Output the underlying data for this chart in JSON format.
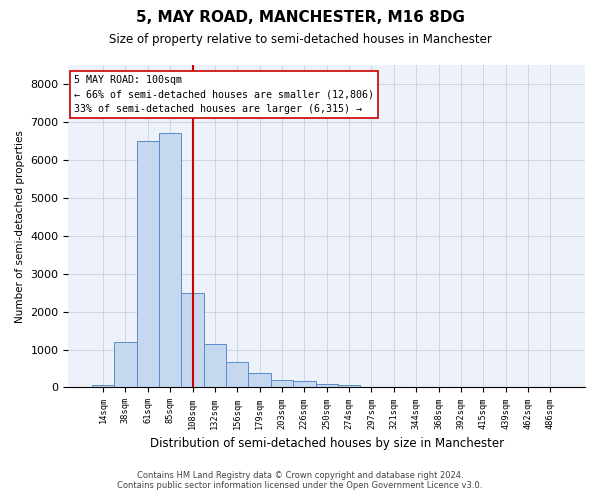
{
  "title": "5, MAY ROAD, MANCHESTER, M16 8DG",
  "subtitle": "Size of property relative to semi-detached houses in Manchester",
  "xlabel": "Distribution of semi-detached houses by size in Manchester",
  "ylabel": "Number of semi-detached properties",
  "footer_line1": "Contains HM Land Registry data © Crown copyright and database right 2024.",
  "footer_line2": "Contains public sector information licensed under the Open Government Licence v3.0.",
  "annotation_line1": "5 MAY ROAD: 100sqm",
  "annotation_line2": "← 66% of semi-detached houses are smaller (12,806)",
  "annotation_line3": "33% of semi-detached houses are larger (6,315) →",
  "bar_color": "#c5d8f0",
  "bar_edge_color": "#5b8cc8",
  "vline_color": "#cc0000",
  "grid_color": "#c8d0de",
  "bg_color": "#edf2fa",
  "categories": [
    "14sqm",
    "38sqm",
    "61sqm",
    "85sqm",
    "108sqm",
    "132sqm",
    "156sqm",
    "179sqm",
    "203sqm",
    "226sqm",
    "250sqm",
    "274sqm",
    "297sqm",
    "321sqm",
    "344sqm",
    "368sqm",
    "392sqm",
    "415sqm",
    "439sqm",
    "462sqm",
    "486sqm"
  ],
  "values": [
    55,
    1200,
    6500,
    6700,
    2500,
    1150,
    680,
    380,
    200,
    170,
    100,
    60,
    20,
    0,
    0,
    0,
    0,
    0,
    0,
    0,
    0
  ],
  "ylim": [
    0,
    8500
  ],
  "yticks": [
    0,
    1000,
    2000,
    3000,
    4000,
    5000,
    6000,
    7000,
    8000
  ],
  "vline_x": 4.0
}
